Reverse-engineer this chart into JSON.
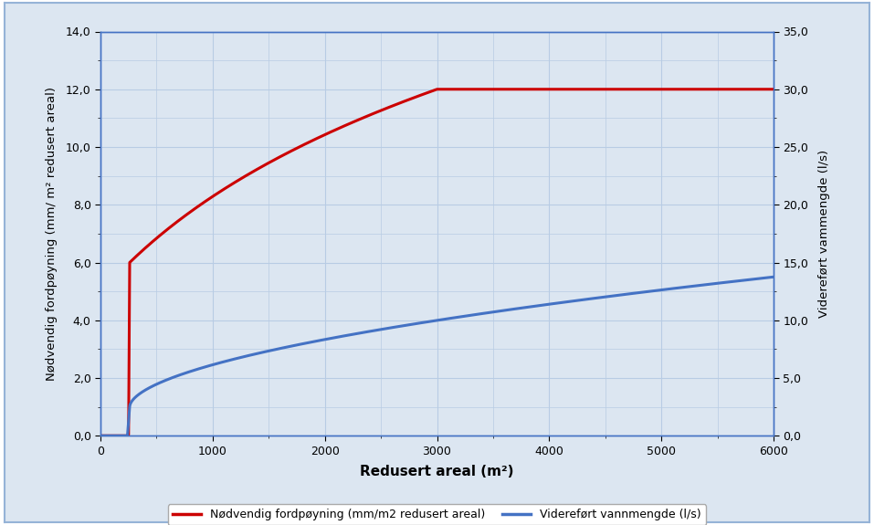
{
  "xlabel": "Redusert areal (m²)",
  "ylabel_left": "Nødvendig fordрøyning (mm/ m² redusert areal)",
  "ylabel_right": "Videreført vammengde (l/s)",
  "xlim": [
    0,
    6000
  ],
  "ylim_left": [
    0,
    14
  ],
  "ylim_right": [
    0,
    35
  ],
  "xticks_major": [
    0,
    1000,
    2000,
    3000,
    4000,
    5000,
    6000
  ],
  "xticks_minor": [
    500,
    1500,
    2500,
    3500,
    4500,
    5500
  ],
  "yticks_left": [
    0.0,
    2.0,
    4.0,
    6.0,
    8.0,
    10.0,
    12.0,
    14.0
  ],
  "yticks_right": [
    0.0,
    5.0,
    10.0,
    15.0,
    20.0,
    25.0,
    30.0,
    35.0
  ],
  "red_color": "#cc0000",
  "blue_color": "#4472c4",
  "grid_color": "#b8cce4",
  "bg_color": "#dce6f1",
  "outer_bg": "#dce6f1",
  "frame_border_color": "#95b3d7",
  "legend_label_red": "Nødvendig fordрøyning (mm/m2 redusert areal)",
  "legend_label_blue": "Videreført vannmengde (l/s)"
}
